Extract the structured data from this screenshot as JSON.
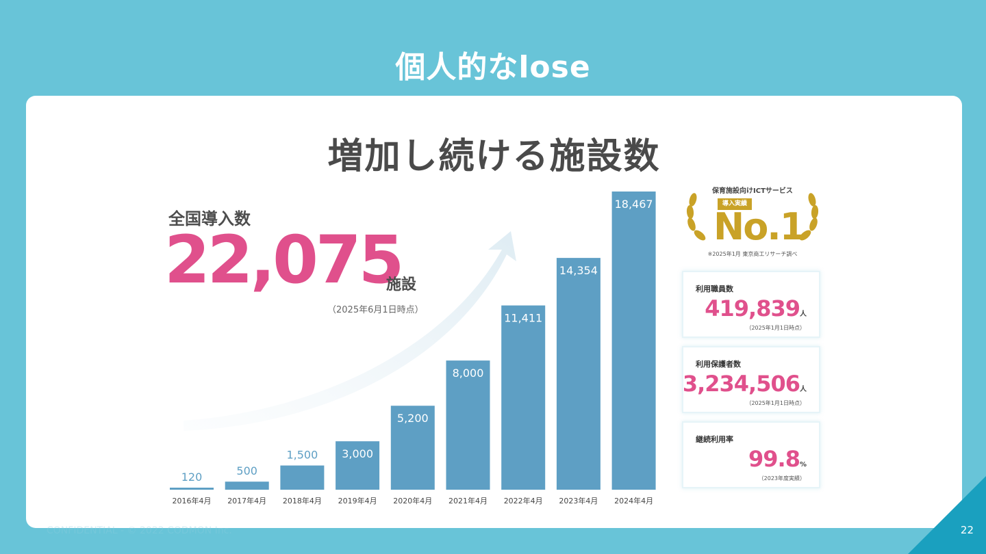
{
  "slide": {
    "title": "個人的なlose",
    "heading": "増加し続ける施設数",
    "footer": "CONFIDENTIAL - © 2022 CODMON Inc.",
    "page_number": "22"
  },
  "total": {
    "label": "全国導入数",
    "value": "22,075",
    "unit": "施設",
    "note": "（2025年6月1日時点）"
  },
  "award": {
    "header": "保育施設向けICTサービス",
    "ribbon": "導入実績",
    "rank": "No.1",
    "note": "※2025年1月 東京商工リサーチ調べ"
  },
  "stats": [
    {
      "label": "利用職員数",
      "value": "419,839",
      "unit": "人",
      "note": "（2025年1月1日時点）"
    },
    {
      "label": "利用保護者数",
      "value": "3,234,506",
      "unit": "人",
      "note": "（2025年1月1日時点）"
    },
    {
      "label": "継続利用率",
      "value": "99.8",
      "unit": "%",
      "note": "（2023年度実績）"
    }
  ],
  "colors": {
    "background": "#68c4d8",
    "bar": "#5e9fc4",
    "accent_pink": "#e0508c",
    "gold": "#c9a227",
    "corner": "#1aa0bf"
  },
  "chart_data": {
    "type": "bar",
    "title": "",
    "xlabel": "",
    "ylabel": "",
    "categories": [
      "2016年4月",
      "2017年4月",
      "2018年4月",
      "2019年4月",
      "2020年4月",
      "2021年4月",
      "2022年4月",
      "2023年4月",
      "2024年4月"
    ],
    "series": [
      {
        "values": [
          120,
          500,
          1500,
          3000,
          5200,
          8000,
          11411,
          14354,
          18467
        ]
      }
    ],
    "value_labels": [
      "120",
      "500",
      "1,500",
      "3,000",
      "5,200",
      "8,000",
      "11,411",
      "14,354",
      "18,467"
    ],
    "ylim": [
      0,
      18467
    ],
    "grid": false,
    "legend": "none"
  }
}
